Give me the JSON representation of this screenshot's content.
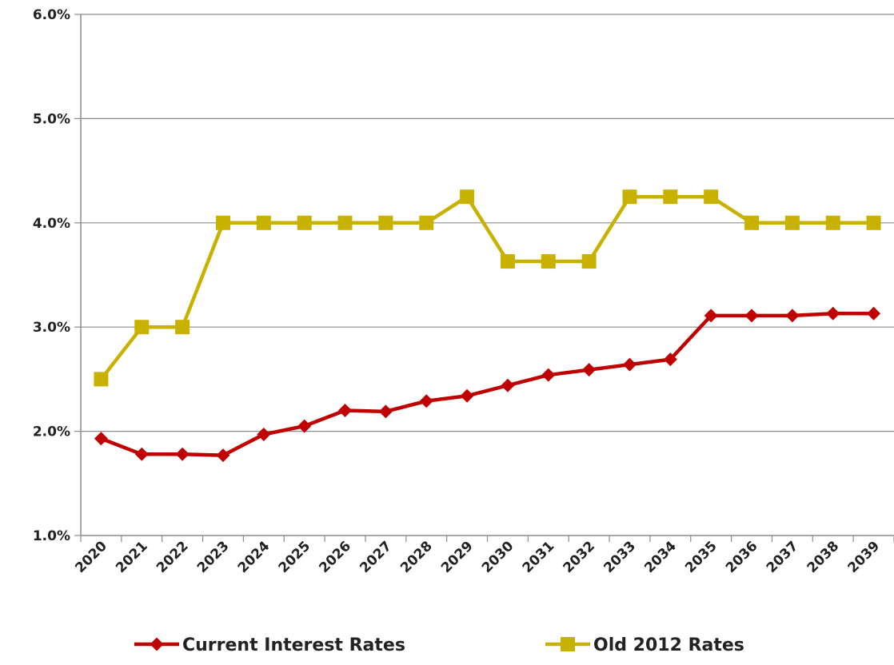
{
  "chart_data": {
    "type": "line",
    "title": "",
    "xlabel": "",
    "ylabel": "",
    "categories": [
      "2020",
      "2021",
      "2022",
      "2023",
      "2024",
      "2025",
      "2026",
      "2027",
      "2028",
      "2029",
      "2030",
      "2031",
      "2032",
      "2033",
      "2034",
      "2035",
      "2036",
      "2037",
      "2038",
      "2039"
    ],
    "ylim": [
      1.0,
      6.0
    ],
    "yticks": [
      1.0,
      2.0,
      3.0,
      4.0,
      5.0,
      6.0
    ],
    "ytick_labels": [
      "1.0%",
      "2.0%",
      "3.0%",
      "4.0%",
      "5.0%",
      "6.0%"
    ],
    "grid": "horizontal",
    "legend_position": "bottom",
    "series": [
      {
        "name": "Current Interest Rates",
        "color": "#C00000",
        "marker": "diamond",
        "values": [
          1.93,
          1.78,
          1.78,
          1.77,
          1.97,
          2.05,
          2.2,
          2.19,
          2.29,
          2.34,
          2.44,
          2.54,
          2.59,
          2.64,
          2.69,
          3.11,
          3.11,
          3.11,
          3.13,
          3.13
        ]
      },
      {
        "name": "Old 2012 Rates",
        "color": "#C9B100",
        "marker": "square",
        "values": [
          2.5,
          3.0,
          3.0,
          4.0,
          4.0,
          4.0,
          4.0,
          4.0,
          4.0,
          4.25,
          3.63,
          3.63,
          3.63,
          4.25,
          4.25,
          4.25,
          4.0,
          4.0,
          4.0,
          4.0
        ]
      }
    ]
  }
}
